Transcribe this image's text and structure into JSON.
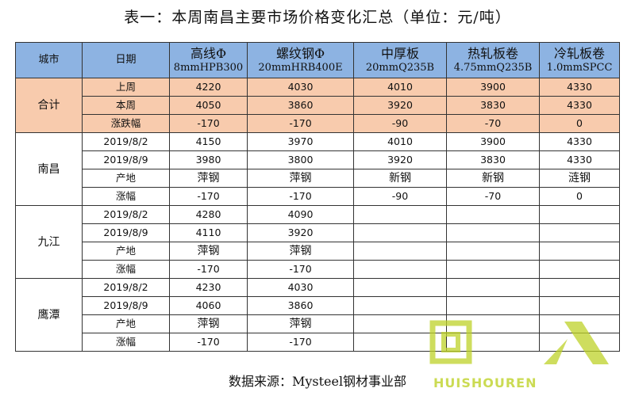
{
  "title": "表一：本周南昌主要市场价格变化汇总（单位：元/吨）",
  "header": {
    "city": "城市",
    "date": "日期",
    "products": [
      {
        "name": "高线Φ",
        "spec": "8mmHPB300"
      },
      {
        "name": "螺纹钢Φ",
        "spec": "20mmHRB400E"
      },
      {
        "name": "中厚板",
        "spec": "20mmQ235B"
      },
      {
        "name": "热轧板卷",
        "spec": "4.75mmQ235B"
      },
      {
        "name": "冷轧板卷",
        "spec": "1.0mmSPCC"
      }
    ]
  },
  "summary": {
    "city": "合计",
    "rows": [
      {
        "label": "上周",
        "values": [
          "4220",
          "4030",
          "4010",
          "3900",
          "4330"
        ]
      },
      {
        "label": "本周",
        "values": [
          "4050",
          "3860",
          "3920",
          "3830",
          "4330"
        ]
      },
      {
        "label": "涨跌幅",
        "values": [
          "-170",
          "-170",
          "-90",
          "-70",
          "0"
        ]
      }
    ]
  },
  "cities": [
    {
      "name": "南昌",
      "rows": [
        {
          "label": "2019/8/2",
          "values": [
            "4150",
            "3970",
            "4010",
            "3900",
            "4330"
          ]
        },
        {
          "label": "2019/8/9",
          "values": [
            "3980",
            "3800",
            "3920",
            "3830",
            "4330"
          ]
        },
        {
          "label": "产地",
          "values": [
            "萍钢",
            "萍钢",
            "新钢",
            "新钢",
            "涟钢"
          ]
        },
        {
          "label": "涨幅",
          "values": [
            "-170",
            "-170",
            "-90",
            "-70",
            "0"
          ]
        }
      ]
    },
    {
      "name": "九江",
      "rows": [
        {
          "label": "2019/8/2",
          "values": [
            "4280",
            "4090",
            "",
            "",
            ""
          ]
        },
        {
          "label": "2019/8/9",
          "values": [
            "4110",
            "3920",
            "",
            "",
            ""
          ]
        },
        {
          "label": "产地",
          "values": [
            "萍钢",
            "萍钢",
            "",
            "",
            ""
          ]
        },
        {
          "label": "涨幅",
          "values": [
            "-170",
            "-170",
            "",
            "",
            ""
          ]
        }
      ]
    },
    {
      "name": "鹰潭",
      "rows": [
        {
          "label": "2019/8/2",
          "values": [
            "4230",
            "4030",
            "",
            "",
            ""
          ]
        },
        {
          "label": "2019/8/9",
          "values": [
            "4060",
            "3860",
            "",
            "",
            ""
          ]
        },
        {
          "label": "产地",
          "values": [
            "萍钢",
            "萍钢",
            "",
            "",
            ""
          ]
        },
        {
          "label": "涨幅",
          "values": [
            "-170",
            "-170",
            "",
            "",
            ""
          ]
        }
      ]
    }
  ],
  "source": "数据来源：Mysteel钢材事业部",
  "watermark": {
    "text": "回收人",
    "sub": "HUISHOUREN",
    "color": "#bed228"
  }
}
